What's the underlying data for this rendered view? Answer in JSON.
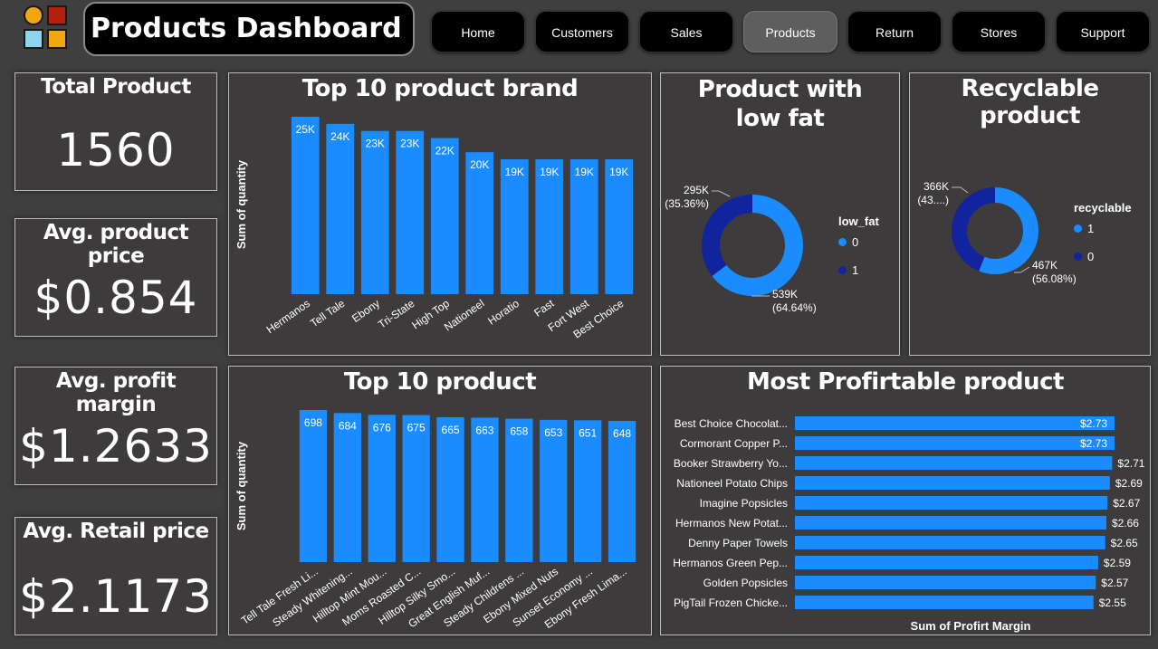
{
  "header": {
    "title": "Products Dashboard",
    "nav": [
      "Home",
      "Customers",
      "Sales",
      "Products",
      "Return",
      "Stores",
      "Support"
    ],
    "active_nav": "Products"
  },
  "colors": {
    "bar": "#1a8cff",
    "dark_blue": "#12239e",
    "panel_bg": "#3d3b3b",
    "page_bg": "#403f3f"
  },
  "kpis": [
    {
      "label": "Total Product",
      "value": "1560"
    },
    {
      "label": "Avg. product price",
      "value": "$0.854"
    },
    {
      "label": "Avg. profit margin",
      "value": "$1.2633"
    },
    {
      "label": "Avg. Retail price",
      "value": "$2.1173"
    }
  ],
  "chart_data": [
    {
      "id": "brand",
      "type": "bar",
      "title": "Top 10 product brand",
      "ylabel": "Sum of quantity",
      "xlabel": "",
      "categories": [
        "Hermanos",
        "Tell Tale",
        "Ebony",
        "Tri-State",
        "High Top",
        "Nationeel",
        "Horatio",
        "Fast",
        "Fort West",
        "Best Choice"
      ],
      "values": [
        25,
        24,
        23,
        23,
        22,
        20,
        19,
        19,
        19,
        19
      ],
      "labels": [
        "25K",
        "24K",
        "23K",
        "23K",
        "22K",
        "20K",
        "19K",
        "19K",
        "19K",
        "19K"
      ],
      "ylim": [
        0,
        25
      ]
    },
    {
      "id": "product",
      "type": "bar",
      "title": "Top 10 product",
      "ylabel": "Sum of quantity",
      "xlabel": "",
      "categories": [
        "Tell Tale Fresh Li...",
        "Steady Whitening...",
        "Hilltop Mint Mou...",
        "Moms Roasted C...",
        "Hilltop Silky Smo...",
        "Great English Muf...",
        "Steady Childrens ...",
        "Ebony Mixed Nuts",
        "Sunset Economy ...",
        "Ebony Fresh Lima..."
      ],
      "values": [
        698,
        684,
        676,
        675,
        665,
        663,
        658,
        653,
        651,
        648
      ],
      "labels": [
        "698",
        "684",
        "676",
        "675",
        "665",
        "663",
        "658",
        "653",
        "651",
        "648"
      ],
      "ylim": [
        0,
        698
      ]
    },
    {
      "id": "lowfat",
      "type": "pie",
      "title": "Product with low fat",
      "legend_title": "low_fat",
      "slices": [
        {
          "name": "0",
          "value": 539,
          "label": "539K",
          "pct": "(64.64%)"
        },
        {
          "name": "1",
          "value": 295,
          "label": "295K",
          "pct": "(35.36%)"
        }
      ]
    },
    {
      "id": "recyclable",
      "type": "pie",
      "title": "Recyclable product",
      "legend_title": "recyclable",
      "slices": [
        {
          "name": "1",
          "value": 467,
          "label": "467K",
          "pct": "(56.08%)"
        },
        {
          "name": "0",
          "value": 366,
          "label": "366K",
          "pct": "(43....)"
        }
      ]
    },
    {
      "id": "profit",
      "type": "bar",
      "orientation": "horizontal",
      "title": "Most Profirtable product",
      "xlabel": "Sum of Profirt Margin",
      "categories": [
        "Best Choice Chocolat...",
        "Cormorant Copper P...",
        "Booker Strawberry Yo...",
        "Nationeel Potato Chips",
        "Imagine Popsicles",
        "Hermanos New Potat...",
        "Denny Paper Towels",
        "Hermanos Green Pep...",
        "Golden Popsicles",
        "PigTail Frozen Chicke..."
      ],
      "values": [
        2.73,
        2.73,
        2.71,
        2.69,
        2.67,
        2.66,
        2.65,
        2.59,
        2.57,
        2.55
      ],
      "labels": [
        "$2.73",
        "$2.73",
        "$2.71",
        "$2.69",
        "$2.67",
        "$2.66",
        "$2.65",
        "$2.59",
        "$2.57",
        "$2.55"
      ],
      "xlim": [
        0,
        2.73
      ]
    }
  ]
}
